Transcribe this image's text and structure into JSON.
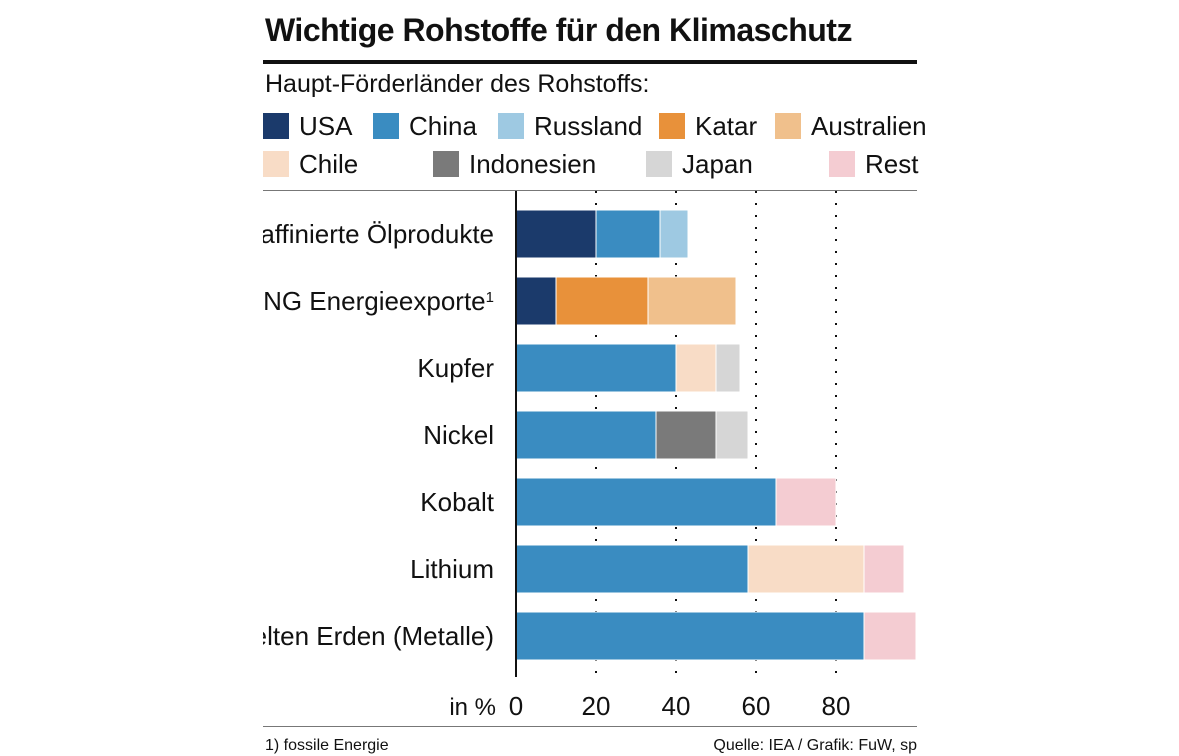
{
  "chart_data": {
    "type": "bar",
    "orientation": "horizontal",
    "stacked": true,
    "title": "Wichtige Rohstoffe für den Klimaschutz",
    "subtitle": "Haupt-Förderländer des Rohstoffs:",
    "xlabel": "in %",
    "xlim": [
      0,
      100
    ],
    "xticks": [
      0,
      20,
      40,
      60,
      80
    ],
    "grid": "dotted vertical at 20, 40, 60, 80",
    "legend": [
      {
        "key": "usa",
        "label": "USA",
        "color": "#1b3a6b"
      },
      {
        "key": "china",
        "label": "China",
        "color": "#3a8cc1"
      },
      {
        "key": "russland",
        "label": "Russland",
        "color": "#9ec9e2"
      },
      {
        "key": "katar",
        "label": "Katar",
        "color": "#e8913a"
      },
      {
        "key": "australien",
        "label": "Australien",
        "color": "#f0c08c"
      },
      {
        "key": "chile",
        "label": "Chile",
        "color": "#f8dcc6"
      },
      {
        "key": "indonesien",
        "label": "Indonesien",
        "color": "#7a7a7a"
      },
      {
        "key": "japan",
        "label": "Japan",
        "color": "#d6d6d6"
      },
      {
        "key": "rest",
        "label": "Rest",
        "color": "#f4ccd2"
      }
    ],
    "categories": [
      {
        "label": "Raffinierte Ölprodukte",
        "sup": "",
        "segments": [
          {
            "key": "usa",
            "value": 20
          },
          {
            "key": "china",
            "value": 16
          },
          {
            "key": "russland",
            "value": 7
          }
        ]
      },
      {
        "label": "LNG Energieexporte",
        "sup": "1",
        "segments": [
          {
            "key": "usa",
            "value": 10
          },
          {
            "key": "katar",
            "value": 23
          },
          {
            "key": "australien",
            "value": 22
          }
        ]
      },
      {
        "label": "Kupfer",
        "sup": "",
        "segments": [
          {
            "key": "china",
            "value": 40
          },
          {
            "key": "chile",
            "value": 10
          },
          {
            "key": "japan",
            "value": 6
          }
        ]
      },
      {
        "label": "Nickel",
        "sup": "",
        "segments": [
          {
            "key": "china",
            "value": 35
          },
          {
            "key": "indonesien",
            "value": 15
          },
          {
            "key": "japan",
            "value": 8
          }
        ]
      },
      {
        "label": "Kobalt",
        "sup": "",
        "segments": [
          {
            "key": "china",
            "value": 65
          },
          {
            "key": "rest",
            "value": 15
          }
        ]
      },
      {
        "label": "Lithium",
        "sup": "",
        "segments": [
          {
            "key": "china",
            "value": 58
          },
          {
            "key": "chile",
            "value": 29
          },
          {
            "key": "rest",
            "value": 10
          }
        ]
      },
      {
        "label": "Selten Erden (Metalle)",
        "sup": "",
        "segments": [
          {
            "key": "china",
            "value": 87
          },
          {
            "key": "rest",
            "value": 13
          }
        ]
      }
    ]
  },
  "footnote": "1) fossile Energie",
  "source": "Quelle: IEA / Grafik: FuW, sp"
}
